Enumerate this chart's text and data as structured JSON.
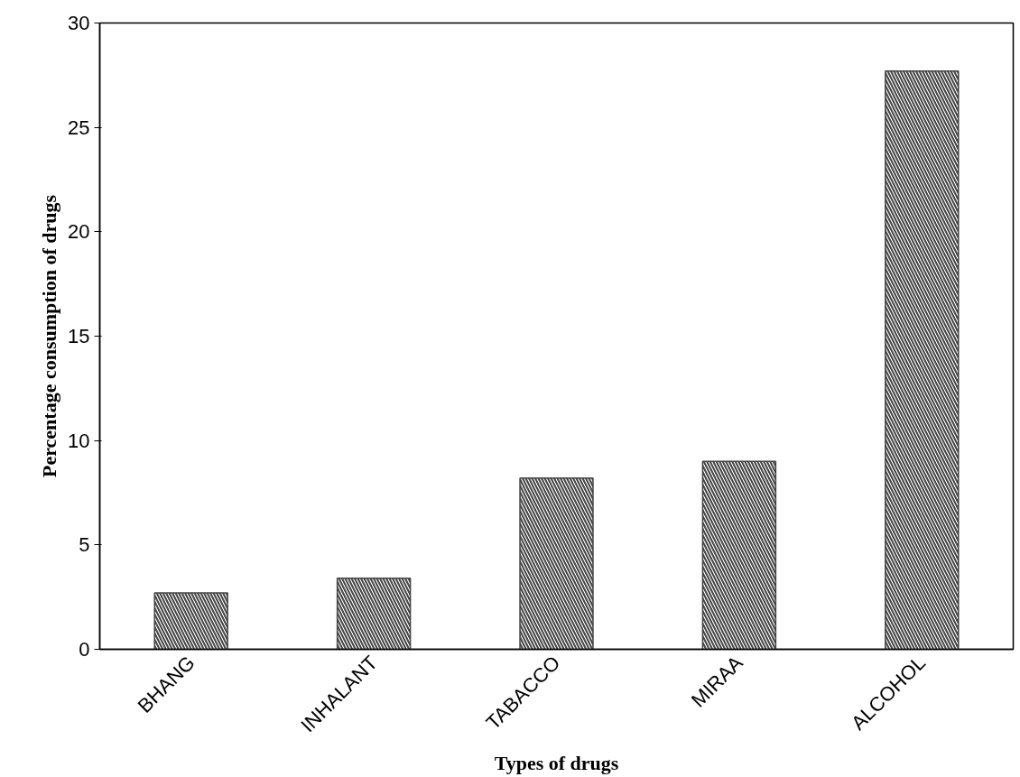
{
  "chart_data": {
    "type": "bar",
    "xlabel": "Types of drugs",
    "ylabel": "Percentage consumption of drugs",
    "categories": [
      "BHANG",
      "INHALANT",
      "TABACCO",
      "MIRAA",
      "ALCOHOL"
    ],
    "values": [
      2.7,
      3.4,
      8.2,
      9.0,
      27.7
    ],
    "color": "#444444",
    "ylim": [
      0,
      30
    ],
    "yticks": [
      0,
      5,
      10,
      15,
      20,
      25,
      30
    ],
    "grid": false
  }
}
